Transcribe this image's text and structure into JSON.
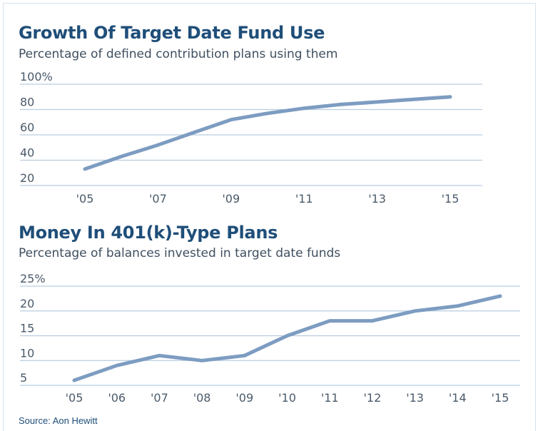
{
  "colors": {
    "line": "#7d9cc1",
    "grid": "#b9cde0",
    "title": "#1f4e79",
    "text": "#4a5a6a"
  },
  "source": "Source: Aon Hewitt",
  "chart_data": [
    {
      "type": "line",
      "title": "Growth Of Target Date Fund Use",
      "subtitle": "Percentage of defined contribution plans using them",
      "x": [
        "'05",
        "'06",
        "'07",
        "'08",
        "'09",
        "'10",
        "'11",
        "'12",
        "'13",
        "'14",
        "'15"
      ],
      "xticks": [
        "'05",
        "'07",
        "'09",
        "'11",
        "'13",
        "'15"
      ],
      "yticks": [
        "100%",
        "80",
        "60",
        "40",
        "20"
      ],
      "ylim": [
        20,
        100
      ],
      "grid": true,
      "series": [
        {
          "values": [
            33,
            43,
            52,
            62,
            72,
            77,
            81,
            84,
            86,
            88,
            90
          ]
        }
      ]
    },
    {
      "type": "line",
      "title": "Money In 401(k)-Type Plans",
      "subtitle": "Percentage of balances invested in target date funds",
      "x": [
        "'05",
        "'06",
        "'07",
        "'08",
        "'09",
        "'10",
        "'11",
        "'12",
        "'13",
        "'14",
        "'15"
      ],
      "xticks": [
        "'05",
        "'06",
        "'07",
        "'08",
        "'09",
        "'10",
        "'11",
        "'12",
        "'13",
        "'14",
        "'15"
      ],
      "yticks": [
        "25%",
        "20",
        "15",
        "10",
        "5"
      ],
      "ylim": [
        5,
        25
      ],
      "grid": true,
      "series": [
        {
          "values": [
            6,
            9,
            11,
            10,
            11,
            15,
            18,
            18,
            20,
            21,
            23
          ]
        }
      ]
    }
  ]
}
